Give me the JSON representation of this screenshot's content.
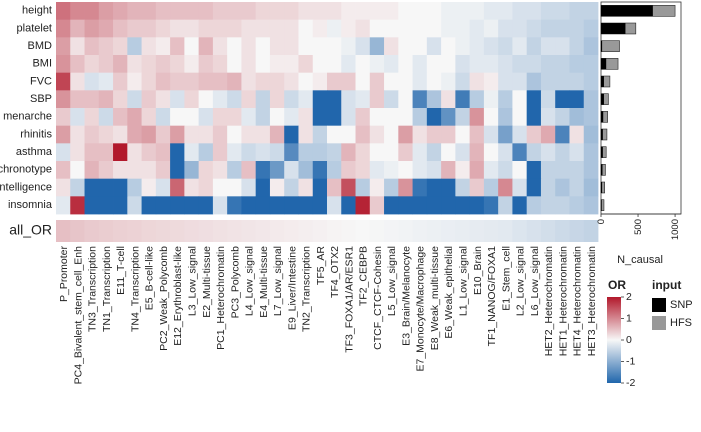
{
  "chart_data": [
    {
      "type": "heatmap",
      "rows": [
        "height",
        "platelet",
        "BMD",
        "BMI",
        "FVC",
        "SBP",
        "menarche",
        "rhinitis",
        "asthma",
        "chronotype",
        "intelligence",
        "insomnia"
      ],
      "columns": [
        "P_Promoter",
        "PC4_Bivalent_stem_cell_Enh",
        "TN3_Transcription",
        "TN1_Transcription",
        "E11_T-cell",
        "TN4_Transcription",
        "E5_B-cell-like",
        "PC2_Weak_Polycomb",
        "E12_Erythroblast-like",
        "L3_Low_signal",
        "E2_Multi-tissue",
        "PC1_Heterochromatin",
        "PC3_Polycomb",
        "L4_Low_signal",
        "E4_Multi-tissue",
        "L7_Low_signal",
        "E9_Liver/Intestine",
        "TN2_Transcription",
        "TF5_AR",
        "TF4_OTX2",
        "TF3_FOXA1/AR/ESR1",
        "TF2_CEBPB",
        "CTCF_CTCF-Cohesin",
        "L5_Low_signal",
        "E3_Brain/Melanocyte",
        "E7_Monocyte/Macrophage",
        "E8_Weak_multi-tissue",
        "E6_Weak_epithelial",
        "L1_Low_signal",
        "E10_Brain",
        "TF1_NANOG/FOXA1",
        "E1_Stem_cell",
        "L2_Low_signal",
        "L6_Low_signal",
        "HET2_Heterochromatin",
        "HET1_Heterochromatin",
        "HET4_Heterochromatin",
        "HET3_Heterochromatin"
      ],
      "values": [
        [
          1.2,
          1.0,
          1.0,
          0.8,
          0.7,
          0.6,
          0.6,
          0.5,
          0.5,
          0.5,
          0.5,
          0.4,
          0.4,
          0.4,
          0.3,
          0.3,
          0.3,
          0.2,
          0.2,
          0.2,
          0.1,
          0.1,
          0.1,
          0.1,
          0.0,
          0.0,
          0.0,
          -0.1,
          -0.1,
          -0.1,
          -0.2,
          -0.2,
          -0.3,
          -0.3,
          -0.4,
          -0.4,
          -0.5,
          -0.5
        ],
        [
          1.0,
          0.6,
          0.8,
          0.7,
          0.5,
          0.4,
          0.4,
          0.3,
          0.2,
          0.2,
          0.3,
          0.3,
          0.3,
          0.2,
          0.2,
          0.2,
          0.2,
          0.0,
          0.1,
          -0.1,
          0.1,
          0.2,
          0.0,
          0.0,
          0.0,
          0.0,
          0.0,
          -0.1,
          -0.1,
          -0.2,
          -0.1,
          -0.3,
          -0.3,
          -0.4,
          -0.5,
          -0.5,
          -0.5,
          -0.6
        ],
        [
          0.8,
          0.2,
          0.5,
          0.4,
          0.3,
          -0.6,
          0.2,
          0.1,
          0.5,
          0.0,
          0.6,
          0.2,
          0.0,
          0.2,
          0.0,
          0.2,
          0.2,
          0.0,
          0.0,
          0.0,
          -0.1,
          -0.3,
          -0.9,
          0.2,
          0.0,
          0.0,
          -0.3,
          0.0,
          -0.1,
          -0.2,
          -0.3,
          -0.4,
          -0.2,
          -0.5,
          -0.3,
          -0.3,
          -0.5,
          -0.7
        ],
        [
          0.9,
          0.5,
          0.3,
          0.4,
          0.6,
          0.2,
          0.3,
          0.4,
          0.3,
          0.1,
          0.4,
          0.3,
          0.0,
          0.2,
          0.0,
          0.1,
          0.1,
          0.3,
          0.0,
          0.0,
          -0.2,
          0.0,
          -0.1,
          -0.2,
          0.0,
          -0.2,
          0.0,
          0.0,
          -0.3,
          -0.2,
          -0.2,
          -0.3,
          -0.4,
          -0.4,
          -0.5,
          -0.5,
          -0.6,
          -0.6
        ],
        [
          1.6,
          0.2,
          -0.3,
          -0.2,
          0.4,
          0.1,
          0.3,
          0.5,
          0.4,
          0.4,
          0.5,
          0.5,
          0.6,
          0.2,
          0.3,
          0.3,
          0.2,
          0.0,
          0.1,
          0.4,
          0.4,
          0.0,
          0.4,
          0.0,
          0.0,
          -0.2,
          0.0,
          -0.1,
          -0.4,
          0.2,
          0.1,
          -0.3,
          -0.3,
          -0.7,
          -0.5,
          -0.5,
          -0.5,
          -0.6
        ],
        [
          0.9,
          0.5,
          0.5,
          0.6,
          0.3,
          -0.4,
          0.4,
          0.2,
          -0.3,
          0.3,
          0.0,
          -0.2,
          -0.4,
          0.3,
          -0.5,
          0.3,
          -0.4,
          -0.2,
          -2.0,
          -2.0,
          -0.3,
          -0.2,
          0.4,
          -0.4,
          0.0,
          -1.6,
          -0.7,
          0.2,
          -1.7,
          -0.6,
          -0.1,
          -0.6,
          0.0,
          -2.0,
          -0.4,
          -2.0,
          -2.0,
          -0.7
        ],
        [
          0.4,
          -0.3,
          0.3,
          -0.4,
          0.5,
          0.7,
          0.3,
          -0.4,
          0.0,
          0.0,
          -0.3,
          0.3,
          0.3,
          -0.2,
          -0.5,
          0.0,
          -0.2,
          0.2,
          -2.0,
          -2.0,
          -0.3,
          0.4,
          0.0,
          0.0,
          0.0,
          -0.6,
          -2.0,
          -1.4,
          -0.5,
          0.9,
          0.0,
          -0.7,
          0.0,
          -2.0,
          -0.3,
          -0.5,
          -0.8,
          -0.7
        ],
        [
          0.8,
          0.2,
          0.4,
          0.3,
          0.2,
          0.7,
          0.8,
          0.4,
          0.8,
          0.2,
          0.2,
          0.4,
          0.0,
          0.2,
          0.2,
          0.6,
          -2.0,
          0.2,
          -0.5,
          0.0,
          0.0,
          0.5,
          0.2,
          0.0,
          0.8,
          0.2,
          0.4,
          0.4,
          0.0,
          0.5,
          -0.3,
          -1.2,
          -0.3,
          0.4,
          0.7,
          -1.6,
          0.2,
          -0.8
        ],
        [
          -0.3,
          0.2,
          0.5,
          0.5,
          2.0,
          0.2,
          0.4,
          0.5,
          -2.0,
          -0.2,
          -0.6,
          0.4,
          -0.2,
          -0.4,
          -0.3,
          -0.4,
          -1.5,
          -0.6,
          -0.6,
          -0.5,
          0.6,
          0.3,
          0.0,
          0.0,
          0.4,
          -0.2,
          -0.5,
          0.0,
          -0.3,
          0.6,
          0.0,
          -0.3,
          -1.6,
          -0.5,
          -0.3,
          -0.5,
          -0.3,
          -0.7
        ],
        [
          0.5,
          0.0,
          0.6,
          0.4,
          0.2,
          0.2,
          0.2,
          0.4,
          -2.0,
          -0.9,
          0.3,
          0.2,
          -0.6,
          0.5,
          -1.8,
          -1.3,
          -0.3,
          -0.8,
          -1.8,
          -0.6,
          0.4,
          0.3,
          -0.2,
          -0.1,
          0.0,
          -0.2,
          -0.3,
          0.6,
          0.1,
          0.7,
          -0.2,
          -0.4,
          0.0,
          -2.0,
          -0.5,
          -0.5,
          -0.5,
          -0.7
        ],
        [
          0.2,
          -0.5,
          -2.0,
          -2.0,
          -2.0,
          -0.6,
          0.1,
          -0.3,
          1.3,
          0.2,
          0.3,
          0.0,
          0.0,
          -0.3,
          -2.0,
          0.1,
          -0.5,
          0.2,
          -2.0,
          0.5,
          1.5,
          -0.6,
          0.1,
          -0.6,
          0.9,
          -1.8,
          -2.0,
          -2.0,
          -0.5,
          0.4,
          -0.6,
          1.0,
          -0.3,
          -2.0,
          -0.5,
          -0.7,
          -0.5,
          -0.8
        ],
        [
          -0.2,
          1.8,
          -2.0,
          -2.0,
          -2.0,
          -0.4,
          -2.0,
          -2.0,
          -2.0,
          -2.0,
          -2.0,
          -0.3,
          -1.8,
          -2.0,
          -2.0,
          -2.0,
          -2.0,
          -2.0,
          -2.0,
          -0.3,
          -2.0,
          1.9,
          0.4,
          -2.0,
          -2.0,
          -2.0,
          -2.0,
          -2.0,
          -2.0,
          -2.0,
          -1.8,
          -0.5,
          -2.0,
          -0.6,
          -0.5,
          -0.5,
          -0.6,
          -0.7
        ]
      ],
      "summary_row": {
        "label": "all_OR",
        "values": [
          0.5,
          0.45,
          0.4,
          0.38,
          0.35,
          0.33,
          0.3,
          0.28,
          0.26,
          0.24,
          0.22,
          0.2,
          0.18,
          0.16,
          0.14,
          0.12,
          0.1,
          0.08,
          0.06,
          0.04,
          0.02,
          0.0,
          -0.02,
          -0.04,
          -0.06,
          -0.08,
          -0.1,
          -0.12,
          -0.14,
          -0.16,
          -0.18,
          -0.2,
          -0.25,
          -0.3,
          -0.35,
          -0.4,
          -0.45,
          -0.5
        ]
      },
      "color_scale": {
        "title": "OR",
        "min": -2,
        "max": 2,
        "ticks": [
          2,
          1,
          0,
          -1,
          -2
        ],
        "colors": {
          "low": "#2166ac",
          "mid": "#f7f7f7",
          "high": "#b2182b"
        }
      }
    },
    {
      "type": "bar",
      "orientation": "horizontal",
      "categories": [
        "height",
        "platelet",
        "BMD",
        "BMI",
        "FVC",
        "SBP",
        "menarche",
        "rhinitis",
        "asthma",
        "chronotype",
        "intelligence",
        "insomnia"
      ],
      "series": [
        {
          "name": "SNP",
          "color": "#000000",
          "values": [
            700,
            330,
            15,
            70,
            40,
            40,
            30,
            25,
            25,
            20,
            15,
            10
          ]
        },
        {
          "name": "HFS",
          "color": "#999999",
          "values": [
            1000,
            470,
            250,
            230,
            120,
            100,
            90,
            80,
            70,
            60,
            50,
            40
          ]
        }
      ],
      "xlabel": "N_causal",
      "xlim": [
        0,
        1080
      ],
      "xticks": [
        0,
        500,
        1000
      ],
      "legend": {
        "title": "input",
        "placement": "right"
      }
    }
  ]
}
